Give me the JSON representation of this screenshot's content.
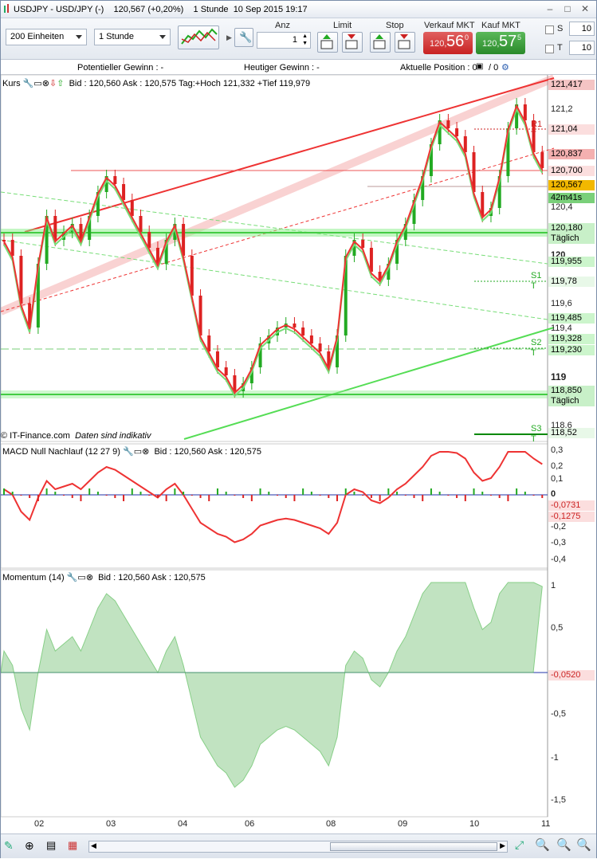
{
  "window": {
    "title": "USDJPY - USD/JPY (-)",
    "price": "120,567 (+0,20%)",
    "timeframe": "1 Stunde",
    "datetime": "10 Sep 2015 19:17"
  },
  "toolbar": {
    "units_select": "200 Einheiten",
    "period_select": "1 Stunde",
    "anz_label": "Anz",
    "anz_value": "1",
    "limit_label": "Limit",
    "stop_label": "Stop",
    "sell_label": "Verkauf MKT",
    "buy_label": "Kauf MKT",
    "sell_small": "120,",
    "sell_big": "56",
    "sell_sup": "0",
    "buy_small": "120,",
    "buy_big": "57",
    "buy_sup": "5",
    "s_label": "S",
    "t_label": "T",
    "s_value": "10",
    "t_value": "10"
  },
  "infobar": {
    "potential": "Potentieller Gewinn : -",
    "today": "Heutiger Gewinn : -",
    "position": "Aktuelle Position : 0",
    "position2": "/ 0"
  },
  "price_panel": {
    "name": "Kurs",
    "info": "Bid : 120,560 Ask : 120,575 Tag:+Hoch 121,332 +Tief 119,979",
    "footer_source": "IT-Finance.com",
    "footer_note": "Daten sind indikativ",
    "ticks": [
      "121,2",
      "120,4",
      "120",
      "119,6",
      "119,4",
      "119",
      "118,6"
    ],
    "tags": [
      {
        "text": "121,417",
        "bg": "#f4c4c4"
      },
      {
        "text": "R1 T",
        "bg": "none"
      },
      {
        "text": "121,04",
        "bg": "#fbdede"
      },
      {
        "text": "120,837",
        "bg": "#f4b0b0"
      },
      {
        "text": "120,700",
        "bg": "#fbdede"
      },
      {
        "text": "120,567",
        "bg": "#f2b800"
      },
      {
        "text": "42m41s",
        "bg": "#7ad07a"
      },
      {
        "text": "120,180",
        "bg": "#c8f0c8"
      },
      {
        "text": "Täglich",
        "bg": "#c8f0c8"
      },
      {
        "text": "119,955",
        "bg": "#ccf5cc"
      },
      {
        "text": "S1 T",
        "bg": "none"
      },
      {
        "text": "119,78",
        "bg": "#e8f8e8"
      },
      {
        "text": "119,485",
        "bg": "#ccf5cc"
      },
      {
        "text": "119,328",
        "bg": "#ccf5cc"
      },
      {
        "text": "S2 T",
        "bg": "none"
      },
      {
        "text": "119,230",
        "bg": "#ccf5cc"
      },
      {
        "text": "118,850",
        "bg": "#c8f0c8"
      },
      {
        "text": "Täglich",
        "bg": "#c8f0c8"
      },
      {
        "text": "S3 T",
        "bg": "none"
      },
      {
        "text": "118,52",
        "bg": "#e8f8e8"
      }
    ]
  },
  "macd_panel": {
    "name": "MACD Null Nachlauf (12 27 9)",
    "info": "Bid : 120,560 Ask : 120,575",
    "ticks": [
      "0,3",
      "0,2",
      "0,1",
      "0",
      "-0,1",
      "-0,2",
      "-0,3",
      "-0,4"
    ],
    "tag1": "-0,0731",
    "tag2": "-0,1275"
  },
  "momentum_panel": {
    "name": "Momentum (14)",
    "info": "Bid : 120,560 Ask : 120,575",
    "ticks": [
      "1",
      "0,5",
      "0",
      "-0,5",
      "-1",
      "-1,5"
    ],
    "tag": "-0,0520"
  },
  "xaxis": [
    "02",
    "03",
    "04",
    "06",
    "08",
    "09",
    "10",
    "11"
  ],
  "colors": {
    "up": "#22aa22",
    "down": "#dd2222",
    "zero": "#2233aa"
  }
}
